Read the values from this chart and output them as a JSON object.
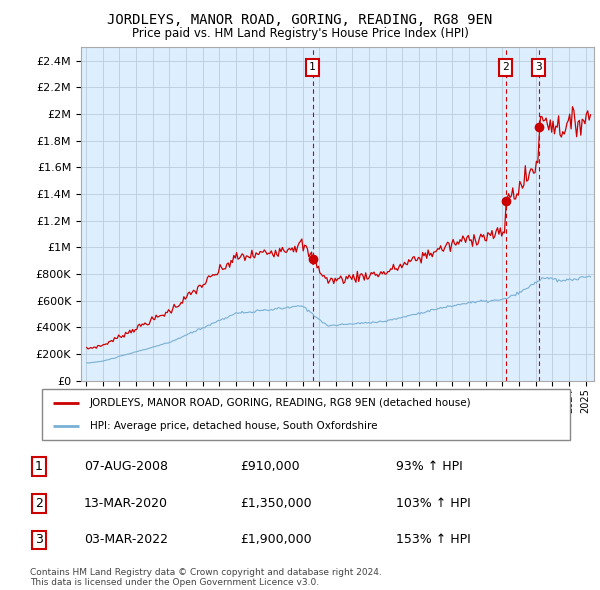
{
  "title": "JORDLEYS, MANOR ROAD, GORING, READING, RG8 9EN",
  "subtitle": "Price paid vs. HM Land Registry's House Price Index (HPI)",
  "hpi_label": "HPI: Average price, detached house, South Oxfordshire",
  "property_label": "JORDLEYS, MANOR ROAD, GORING, READING, RG8 9EN (detached house)",
  "sale_dates_str": [
    "07-AUG-2008",
    "13-MAR-2020",
    "03-MAR-2022"
  ],
  "sale_years": [
    2008.6,
    2020.2,
    2022.17
  ],
  "sale_prices": [
    910000,
    1350000,
    1900000
  ],
  "sale_hpi_pct": [
    "93%",
    "103%",
    "153%"
  ],
  "footnote1": "Contains HM Land Registry data © Crown copyright and database right 2024.",
  "footnote2": "This data is licensed under the Open Government Licence v3.0.",
  "ylim_max": 2500000,
  "yticks": [
    0,
    200000,
    400000,
    600000,
    800000,
    1000000,
    1200000,
    1400000,
    1600000,
    1800000,
    2000000,
    2200000,
    2400000
  ],
  "ytick_labels": [
    "£0",
    "£200K",
    "£400K",
    "£600K",
    "£800K",
    "£1M",
    "£1.2M",
    "£1.4M",
    "£1.6M",
    "£1.8M",
    "£2M",
    "£2.2M",
    "£2.4M"
  ],
  "property_color": "#cc0000",
  "hpi_color": "#7ab0d4",
  "vline_color": "#cc0000",
  "chart_bg": "#ddeeff",
  "background_color": "#ffffff",
  "grid_color": "#bbccdd",
  "xmin": 1994.7,
  "xmax": 2025.5
}
